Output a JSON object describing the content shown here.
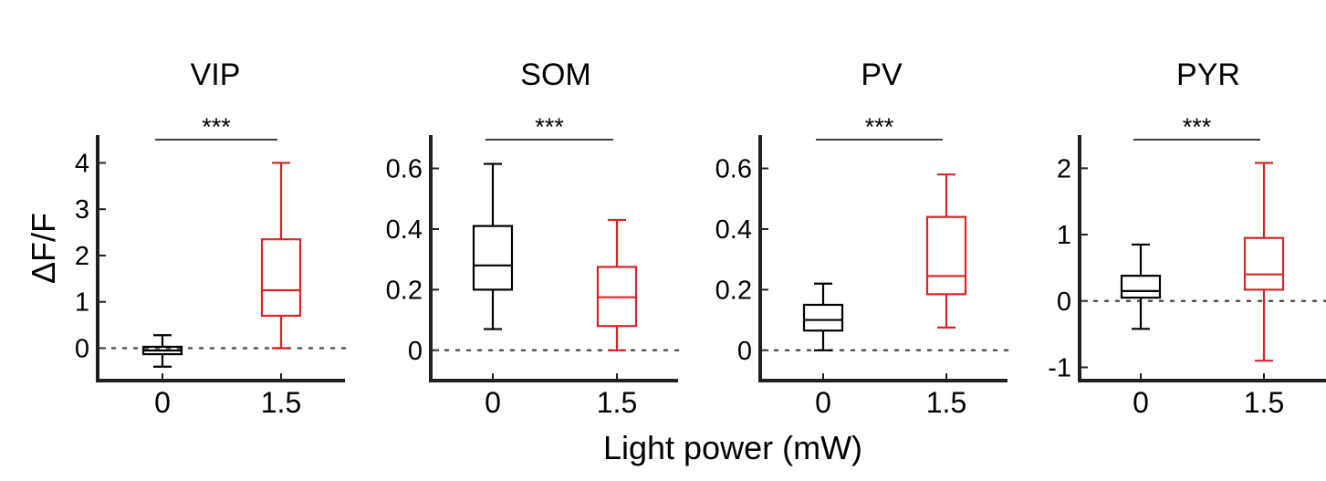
{
  "figure": {
    "xlabel": "Light power (mW)",
    "ylabel": "ΔF/F"
  },
  "colors": {
    "control": "#000000",
    "light": "#d62728",
    "axis": "#231f20"
  },
  "chart_data": [
    {
      "type": "box",
      "title": "VIP",
      "categories": [
        "0",
        "1.5"
      ],
      "ylim": [
        -0.7,
        4.6
      ],
      "yticks": [
        0,
        1,
        2,
        3,
        4
      ],
      "ytick_labels": [
        "0",
        "1",
        "2",
        "3",
        "4"
      ],
      "reference_line": 0,
      "boxes": [
        {
          "category": "0",
          "whisker_low": -0.4,
          "q1": -0.13,
          "median": -0.05,
          "q3": 0.03,
          "whisker_high": 0.28
        },
        {
          "category": "1.5",
          "whisker_low": 0.0,
          "q1": 0.7,
          "median": 1.25,
          "q3": 2.35,
          "whisker_high": 4.0
        }
      ],
      "significance": "***"
    },
    {
      "type": "box",
      "title": "SOM",
      "categories": [
        "0",
        "1.5"
      ],
      "ylim": [
        -0.1,
        0.71
      ],
      "yticks": [
        0,
        0.2,
        0.4,
        0.6
      ],
      "ytick_labels": [
        "0",
        "0.2",
        "0.4",
        "0.6"
      ],
      "reference_line": 0,
      "boxes": [
        {
          "category": "0",
          "whisker_low": 0.07,
          "q1": 0.2,
          "median": 0.28,
          "q3": 0.41,
          "whisker_high": 0.615
        },
        {
          "category": "1.5",
          "whisker_low": 0.0,
          "q1": 0.08,
          "median": 0.175,
          "q3": 0.275,
          "whisker_high": 0.43
        }
      ],
      "significance": "***"
    },
    {
      "type": "box",
      "title": "PV",
      "categories": [
        "0",
        "1.5"
      ],
      "ylim": [
        -0.1,
        0.71
      ],
      "yticks": [
        0,
        0.2,
        0.4,
        0.6
      ],
      "ytick_labels": [
        "0",
        "0.2",
        "0.4",
        "0.6"
      ],
      "reference_line": 0,
      "boxes": [
        {
          "category": "0",
          "whisker_low": 0.0,
          "q1": 0.065,
          "median": 0.1,
          "q3": 0.15,
          "whisker_high": 0.22
        },
        {
          "category": "1.5",
          "whisker_low": 0.075,
          "q1": 0.185,
          "median": 0.245,
          "q3": 0.44,
          "whisker_high": 0.58
        }
      ],
      "significance": "***"
    },
    {
      "type": "box",
      "title": "PYR",
      "categories": [
        "0",
        "1.5"
      ],
      "ylim": [
        -1.2,
        2.5
      ],
      "yticks": [
        -1,
        0,
        1,
        2
      ],
      "ytick_labels": [
        "-1",
        "0",
        "1",
        "2"
      ],
      "reference_line": 0,
      "boxes": [
        {
          "category": "0",
          "whisker_low": -0.42,
          "q1": 0.05,
          "median": 0.15,
          "q3": 0.38,
          "whisker_high": 0.85
        },
        {
          "category": "1.5",
          "whisker_low": -0.9,
          "q1": 0.17,
          "median": 0.4,
          "q3": 0.95,
          "whisker_high": 2.08
        }
      ],
      "significance": "***"
    }
  ]
}
